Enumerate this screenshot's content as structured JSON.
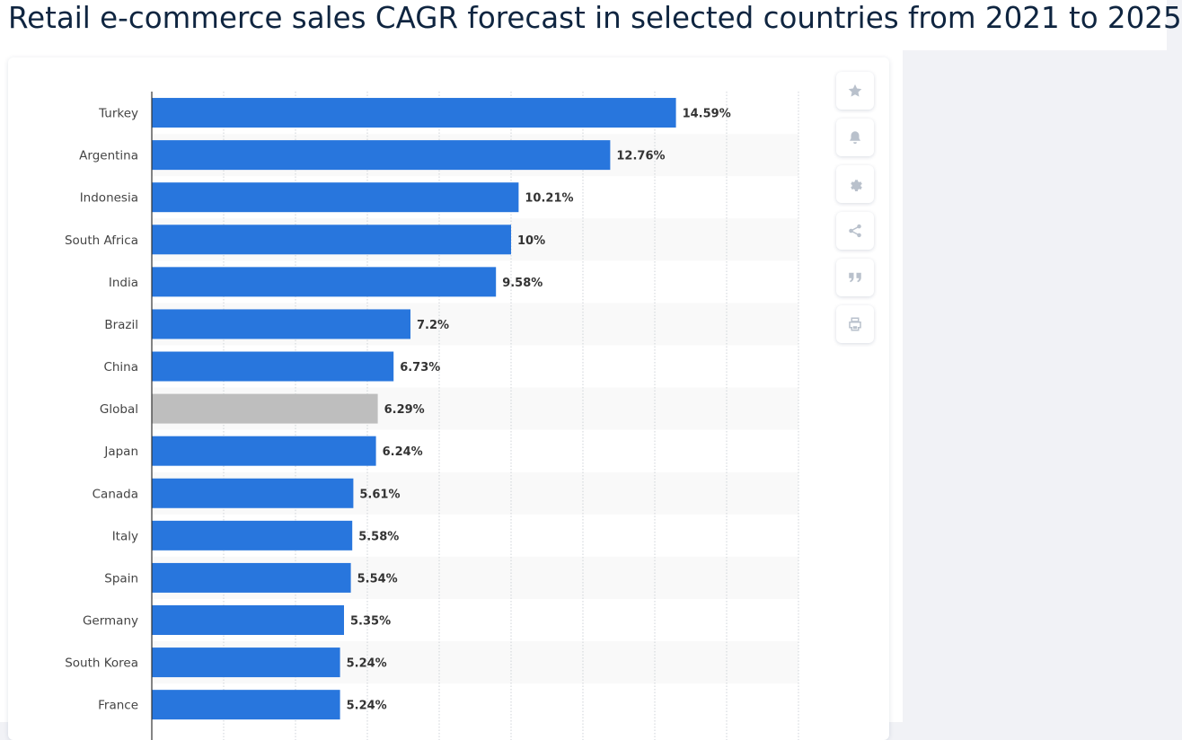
{
  "page": {
    "title": "Retail e-commerce sales CAGR forecast in selected countries from 2021 to 2025"
  },
  "toolbar": {
    "items": [
      {
        "icon": "star-icon"
      },
      {
        "icon": "bell-icon"
      },
      {
        "icon": "gear-icon"
      },
      {
        "icon": "share-icon"
      },
      {
        "icon": "quote-icon"
      },
      {
        "icon": "print-icon"
      }
    ]
  },
  "chart_data": {
    "type": "bar",
    "orientation": "horizontal",
    "title": "Retail e-commerce sales CAGR forecast in selected countries from 2021 to 2025",
    "categories": [
      "Turkey",
      "Argentina",
      "Indonesia",
      "South Africa",
      "India",
      "Brazil",
      "China",
      "Global",
      "Japan",
      "Canada",
      "Italy",
      "Spain",
      "Germany",
      "South Korea",
      "France"
    ],
    "values": [
      14.59,
      12.76,
      10.21,
      10,
      9.58,
      7.2,
      6.73,
      6.29,
      6.24,
      5.61,
      5.58,
      5.54,
      5.35,
      5.24,
      5.24
    ],
    "value_labels": [
      "14.59%",
      "12.76%",
      "10.21%",
      "10%",
      "9.58%",
      "7.2%",
      "6.73%",
      "6.29%",
      "6.24%",
      "5.61%",
      "5.58%",
      "5.54%",
      "5.35%",
      "5.24%",
      "5.24%"
    ],
    "highlight_category": "Global",
    "xlim": [
      0,
      18
    ],
    "grid": true,
    "xlabel": "",
    "ylabel": "",
    "colors": {
      "bar": "#2876dd",
      "highlight": "#bebebe"
    }
  }
}
